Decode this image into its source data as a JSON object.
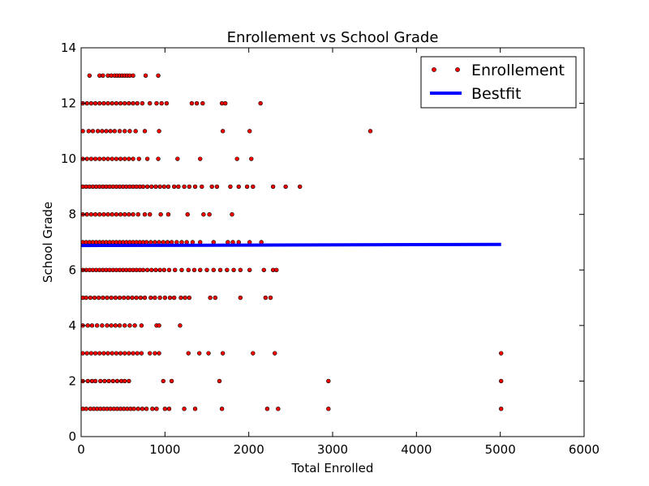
{
  "chart_data": {
    "type": "scatter",
    "title": "Enrollement vs School Grade",
    "xlabel": "Total Enrolled",
    "ylabel": "School Grade",
    "xlim": [
      0,
      6000
    ],
    "ylim": [
      0,
      14
    ],
    "xticks": [
      0,
      1000,
      2000,
      3000,
      4000,
      5000,
      6000
    ],
    "yticks": [
      0,
      2,
      4,
      6,
      8,
      10,
      12,
      14
    ],
    "grid": false,
    "legend_position": "top-right",
    "series": [
      {
        "name": "Enrollement",
        "kind": "scatter",
        "color": "#ff0000",
        "points": [
          [
            20,
            1
          ],
          [
            60,
            1
          ],
          [
            110,
            1
          ],
          [
            150,
            1
          ],
          [
            190,
            1
          ],
          [
            230,
            1
          ],
          [
            270,
            1
          ],
          [
            310,
            1
          ],
          [
            350,
            1
          ],
          [
            390,
            1
          ],
          [
            430,
            1
          ],
          [
            470,
            1
          ],
          [
            510,
            1
          ],
          [
            550,
            1
          ],
          [
            590,
            1
          ],
          [
            630,
            1
          ],
          [
            680,
            1
          ],
          [
            730,
            1
          ],
          [
            780,
            1
          ],
          [
            850,
            1
          ],
          [
            900,
            1
          ],
          [
            1000,
            1
          ],
          [
            1050,
            1
          ],
          [
            1230,
            1
          ],
          [
            1360,
            1
          ],
          [
            1680,
            1
          ],
          [
            2220,
            1
          ],
          [
            2350,
            1
          ],
          [
            2950,
            1
          ],
          [
            5010,
            1
          ],
          [
            20,
            2
          ],
          [
            80,
            2
          ],
          [
            130,
            2
          ],
          [
            170,
            2
          ],
          [
            230,
            2
          ],
          [
            280,
            2
          ],
          [
            330,
            2
          ],
          [
            380,
            2
          ],
          [
            430,
            2
          ],
          [
            480,
            2
          ],
          [
            520,
            2
          ],
          [
            570,
            2
          ],
          [
            980,
            2
          ],
          [
            1080,
            2
          ],
          [
            1650,
            2
          ],
          [
            2950,
            2
          ],
          [
            5010,
            2
          ],
          [
            20,
            3
          ],
          [
            70,
            3
          ],
          [
            120,
            3
          ],
          [
            170,
            3
          ],
          [
            220,
            3
          ],
          [
            270,
            3
          ],
          [
            320,
            3
          ],
          [
            370,
            3
          ],
          [
            420,
            3
          ],
          [
            470,
            3
          ],
          [
            520,
            3
          ],
          [
            570,
            3
          ],
          [
            620,
            3
          ],
          [
            670,
            3
          ],
          [
            720,
            3
          ],
          [
            820,
            3
          ],
          [
            880,
            3
          ],
          [
            930,
            3
          ],
          [
            1280,
            3
          ],
          [
            1410,
            3
          ],
          [
            1520,
            3
          ],
          [
            1690,
            3
          ],
          [
            2050,
            3
          ],
          [
            2310,
            3
          ],
          [
            5010,
            3
          ],
          [
            20,
            4
          ],
          [
            80,
            4
          ],
          [
            130,
            4
          ],
          [
            190,
            4
          ],
          [
            250,
            4
          ],
          [
            310,
            4
          ],
          [
            360,
            4
          ],
          [
            410,
            4
          ],
          [
            460,
            4
          ],
          [
            520,
            4
          ],
          [
            580,
            4
          ],
          [
            640,
            4
          ],
          [
            720,
            4
          ],
          [
            900,
            4
          ],
          [
            930,
            4
          ],
          [
            1180,
            4
          ],
          [
            20,
            5
          ],
          [
            60,
            5
          ],
          [
            110,
            5
          ],
          [
            160,
            5
          ],
          [
            210,
            5
          ],
          [
            260,
            5
          ],
          [
            310,
            5
          ],
          [
            360,
            5
          ],
          [
            410,
            5
          ],
          [
            460,
            5
          ],
          [
            510,
            5
          ],
          [
            560,
            5
          ],
          [
            610,
            5
          ],
          [
            660,
            5
          ],
          [
            710,
            5
          ],
          [
            760,
            5
          ],
          [
            830,
            5
          ],
          [
            880,
            5
          ],
          [
            940,
            5
          ],
          [
            1000,
            5
          ],
          [
            1060,
            5
          ],
          [
            1110,
            5
          ],
          [
            1190,
            5
          ],
          [
            1240,
            5
          ],
          [
            1290,
            5
          ],
          [
            1540,
            5
          ],
          [
            1600,
            5
          ],
          [
            1900,
            5
          ],
          [
            2200,
            5
          ],
          [
            2260,
            5
          ],
          [
            20,
            6
          ],
          [
            60,
            6
          ],
          [
            100,
            6
          ],
          [
            140,
            6
          ],
          [
            180,
            6
          ],
          [
            220,
            6
          ],
          [
            260,
            6
          ],
          [
            300,
            6
          ],
          [
            340,
            6
          ],
          [
            380,
            6
          ],
          [
            420,
            6
          ],
          [
            460,
            6
          ],
          [
            500,
            6
          ],
          [
            540,
            6
          ],
          [
            580,
            6
          ],
          [
            620,
            6
          ],
          [
            660,
            6
          ],
          [
            700,
            6
          ],
          [
            740,
            6
          ],
          [
            790,
            6
          ],
          [
            840,
            6
          ],
          [
            890,
            6
          ],
          [
            940,
            6
          ],
          [
            990,
            6
          ],
          [
            1050,
            6
          ],
          [
            1120,
            6
          ],
          [
            1200,
            6
          ],
          [
            1280,
            6
          ],
          [
            1350,
            6
          ],
          [
            1420,
            6
          ],
          [
            1500,
            6
          ],
          [
            1580,
            6
          ],
          [
            1660,
            6
          ],
          [
            1740,
            6
          ],
          [
            1820,
            6
          ],
          [
            1900,
            6
          ],
          [
            2010,
            6
          ],
          [
            2180,
            6
          ],
          [
            2290,
            6
          ],
          [
            2330,
            6
          ],
          [
            20,
            7
          ],
          [
            60,
            7
          ],
          [
            100,
            7
          ],
          [
            140,
            7
          ],
          [
            180,
            7
          ],
          [
            220,
            7
          ],
          [
            260,
            7
          ],
          [
            300,
            7
          ],
          [
            340,
            7
          ],
          [
            380,
            7
          ],
          [
            420,
            7
          ],
          [
            460,
            7
          ],
          [
            500,
            7
          ],
          [
            540,
            7
          ],
          [
            580,
            7
          ],
          [
            620,
            7
          ],
          [
            660,
            7
          ],
          [
            700,
            7
          ],
          [
            740,
            7
          ],
          [
            780,
            7
          ],
          [
            830,
            7
          ],
          [
            880,
            7
          ],
          [
            930,
            7
          ],
          [
            980,
            7
          ],
          [
            1030,
            7
          ],
          [
            1080,
            7
          ],
          [
            1140,
            7
          ],
          [
            1200,
            7
          ],
          [
            1260,
            7
          ],
          [
            1330,
            7
          ],
          [
            1420,
            7
          ],
          [
            1580,
            7
          ],
          [
            1750,
            7
          ],
          [
            1810,
            7
          ],
          [
            1880,
            7
          ],
          [
            2010,
            7
          ],
          [
            2150,
            7
          ],
          [
            20,
            8
          ],
          [
            70,
            8
          ],
          [
            120,
            8
          ],
          [
            170,
            8
          ],
          [
            220,
            8
          ],
          [
            270,
            8
          ],
          [
            320,
            8
          ],
          [
            370,
            8
          ],
          [
            420,
            8
          ],
          [
            470,
            8
          ],
          [
            520,
            8
          ],
          [
            570,
            8
          ],
          [
            620,
            8
          ],
          [
            680,
            8
          ],
          [
            760,
            8
          ],
          [
            820,
            8
          ],
          [
            950,
            8
          ],
          [
            1040,
            8
          ],
          [
            1270,
            8
          ],
          [
            1460,
            8
          ],
          [
            1530,
            8
          ],
          [
            1800,
            8
          ],
          [
            20,
            9
          ],
          [
            60,
            9
          ],
          [
            100,
            9
          ],
          [
            140,
            9
          ],
          [
            180,
            9
          ],
          [
            220,
            9
          ],
          [
            260,
            9
          ],
          [
            300,
            9
          ],
          [
            340,
            9
          ],
          [
            380,
            9
          ],
          [
            420,
            9
          ],
          [
            460,
            9
          ],
          [
            500,
            9
          ],
          [
            540,
            9
          ],
          [
            580,
            9
          ],
          [
            620,
            9
          ],
          [
            660,
            9
          ],
          [
            700,
            9
          ],
          [
            740,
            9
          ],
          [
            790,
            9
          ],
          [
            840,
            9
          ],
          [
            890,
            9
          ],
          [
            940,
            9
          ],
          [
            990,
            9
          ],
          [
            1040,
            9
          ],
          [
            1110,
            9
          ],
          [
            1160,
            9
          ],
          [
            1230,
            9
          ],
          [
            1290,
            9
          ],
          [
            1360,
            9
          ],
          [
            1440,
            9
          ],
          [
            1560,
            9
          ],
          [
            1620,
            9
          ],
          [
            1780,
            9
          ],
          [
            1880,
            9
          ],
          [
            1980,
            9
          ],
          [
            2050,
            9
          ],
          [
            2290,
            9
          ],
          [
            2440,
            9
          ],
          [
            2610,
            9
          ],
          [
            20,
            10
          ],
          [
            70,
            10
          ],
          [
            120,
            10
          ],
          [
            170,
            10
          ],
          [
            220,
            10
          ],
          [
            270,
            10
          ],
          [
            320,
            10
          ],
          [
            370,
            10
          ],
          [
            420,
            10
          ],
          [
            470,
            10
          ],
          [
            520,
            10
          ],
          [
            570,
            10
          ],
          [
            620,
            10
          ],
          [
            690,
            10
          ],
          [
            790,
            10
          ],
          [
            920,
            10
          ],
          [
            1150,
            10
          ],
          [
            1420,
            10
          ],
          [
            1860,
            10
          ],
          [
            2030,
            10
          ],
          [
            20,
            11
          ],
          [
            90,
            11
          ],
          [
            140,
            11
          ],
          [
            200,
            11
          ],
          [
            250,
            11
          ],
          [
            300,
            11
          ],
          [
            350,
            11
          ],
          [
            400,
            11
          ],
          [
            460,
            11
          ],
          [
            520,
            11
          ],
          [
            580,
            11
          ],
          [
            650,
            11
          ],
          [
            760,
            11
          ],
          [
            930,
            11
          ],
          [
            1690,
            11
          ],
          [
            2010,
            11
          ],
          [
            3450,
            11
          ],
          [
            20,
            12
          ],
          [
            70,
            12
          ],
          [
            120,
            12
          ],
          [
            170,
            12
          ],
          [
            220,
            12
          ],
          [
            270,
            12
          ],
          [
            320,
            12
          ],
          [
            370,
            12
          ],
          [
            420,
            12
          ],
          [
            470,
            12
          ],
          [
            520,
            12
          ],
          [
            570,
            12
          ],
          [
            620,
            12
          ],
          [
            670,
            12
          ],
          [
            730,
            12
          ],
          [
            820,
            12
          ],
          [
            900,
            12
          ],
          [
            960,
            12
          ],
          [
            1020,
            12
          ],
          [
            1320,
            12
          ],
          [
            1380,
            12
          ],
          [
            1450,
            12
          ],
          [
            1680,
            12
          ],
          [
            1720,
            12
          ],
          [
            2140,
            12
          ],
          [
            100,
            13
          ],
          [
            220,
            13
          ],
          [
            260,
            13
          ],
          [
            320,
            13
          ],
          [
            360,
            13
          ],
          [
            400,
            13
          ],
          [
            430,
            13
          ],
          [
            460,
            13
          ],
          [
            490,
            13
          ],
          [
            520,
            13
          ],
          [
            550,
            13
          ],
          [
            580,
            13
          ],
          [
            620,
            13
          ],
          [
            770,
            13
          ],
          [
            920,
            13
          ]
        ]
      },
      {
        "name": "Bestfit",
        "kind": "line",
        "color": "#0000ff",
        "x": [
          0,
          5010
        ],
        "y": [
          6.88,
          6.92
        ]
      }
    ]
  }
}
